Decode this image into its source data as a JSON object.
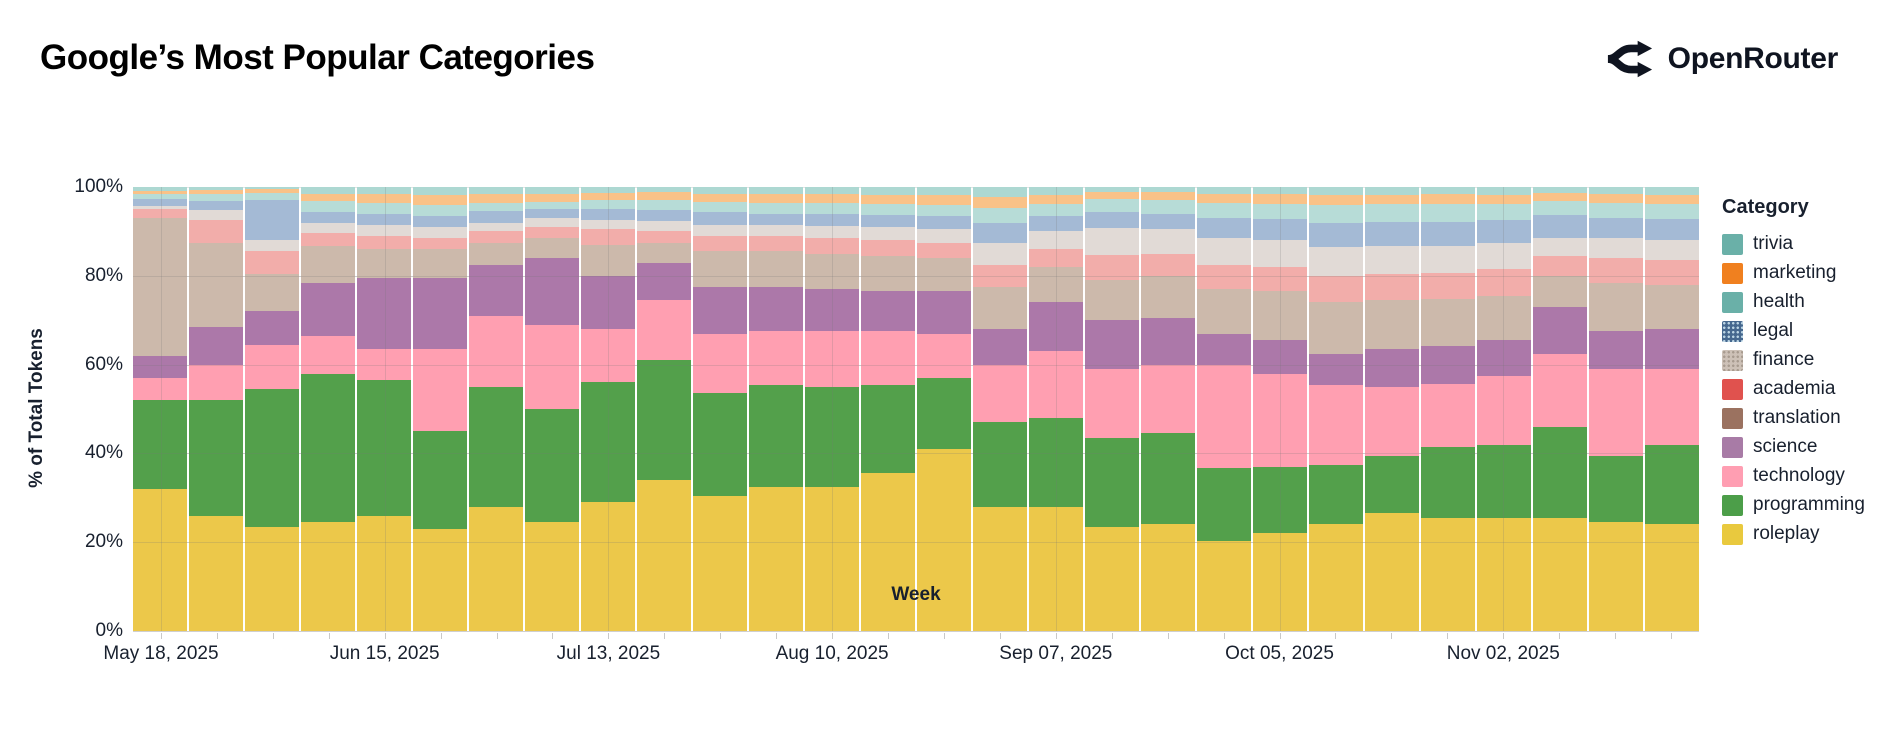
{
  "header": {
    "title": "Google’s Most Popular Categories",
    "brand": "OpenRouter"
  },
  "chart_data": {
    "type": "bar",
    "subtype": "stacked-100-percent",
    "title": "Google’s Most Popular Categories",
    "xlabel": "Week",
    "ylabel": "% of Total Tokens",
    "legend_title": "Category",
    "legend_position": "right",
    "grid": true,
    "ylim": [
      0,
      100
    ],
    "y_tick_labels": [
      "0%",
      "20%",
      "40%",
      "60%",
      "80%",
      "100%"
    ],
    "x_tick_labels": [
      "May 18, 2025",
      "Jun 15, 2025",
      "Jul 13, 2025",
      "Aug 10, 2025",
      "Sep 07, 2025",
      "Oct 05, 2025",
      "Nov 02, 2025"
    ],
    "categories": [
      {
        "id": "trivia",
        "label": "trivia",
        "legend_color": "#6ab0a8",
        "bar_color": "#add8d2",
        "pattern": "teal-dots"
      },
      {
        "id": "marketing",
        "label": "marketing",
        "legend_color": "#f0801f",
        "bar_color": "#f9c288",
        "pattern": "none"
      },
      {
        "id": "health",
        "label": "health",
        "legend_color": "#6ab0a8",
        "bar_color": "#b7dcd7",
        "pattern": "none"
      },
      {
        "id": "legal",
        "label": "legal",
        "legend_color": "#46688f",
        "bar_color": "#a4bad5",
        "pattern": "light-dots"
      },
      {
        "id": "finance",
        "label": "finance",
        "legend_color": "#cdc1b7",
        "bar_color": "#e1dad6",
        "pattern": "light-dots"
      },
      {
        "id": "academia",
        "label": "academia",
        "legend_color": "#e0524e",
        "bar_color": "#f2adaa",
        "pattern": "none"
      },
      {
        "id": "translation",
        "label": "translation",
        "legend_color": "#9b7260",
        "bar_color": "#ccb9ab",
        "pattern": "none"
      },
      {
        "id": "science",
        "label": "science",
        "legend_color": "#a87ba6",
        "bar_color": "#ac78a9",
        "pattern": "none"
      },
      {
        "id": "technology",
        "label": "technology",
        "legend_color": "#ff9eb2",
        "bar_color": "#ff9fb1",
        "pattern": "none"
      },
      {
        "id": "programming",
        "label": "programming",
        "legend_color": "#4c9e49",
        "bar_color": "#53a04b",
        "pattern": "none"
      },
      {
        "id": "roleplay",
        "label": "roleplay",
        "legend_color": "#e9c93e",
        "bar_color": "#ecc84a",
        "pattern": "none"
      }
    ],
    "weeks": [
      {
        "label": "May 18, 2025",
        "values": {
          "roleplay": 32,
          "programming": 20,
          "technology": 5,
          "science": 5,
          "translation": 31,
          "academia": 2,
          "finance": 0.7,
          "legal": 1.6,
          "health": 1.1,
          "marketing": 0.8,
          "trivia": 0.8
        }
      },
      {
        "label": "",
        "values": {
          "roleplay": 26,
          "programming": 26,
          "technology": 8,
          "science": 8.5,
          "translation": 19,
          "academia": 5,
          "finance": 2.3,
          "legal": 2,
          "health": 1.6,
          "marketing": 0.9,
          "trivia": 0.7
        }
      },
      {
        "label": "",
        "values": {
          "roleplay": 23.5,
          "programming": 31,
          "technology": 10,
          "science": 7.5,
          "translation": 8.5,
          "academia": 5,
          "finance": 2.5,
          "legal": 9.2,
          "health": 1.4,
          "marketing": 0.9,
          "trivia": 0.5
        }
      },
      {
        "label": "",
        "values": {
          "roleplay": 24.5,
          "programming": 33.5,
          "technology": 8.5,
          "science": 12,
          "translation": 8.2,
          "academia": 2.9,
          "finance": 2.3,
          "legal": 2.5,
          "health": 2.4,
          "marketing": 1.6,
          "trivia": 1.6
        }
      },
      {
        "label": "Jun 15, 2025",
        "values": {
          "roleplay": 26,
          "programming": 30.5,
          "technology": 7,
          "science": 16,
          "translation": 6.5,
          "academia": 3,
          "finance": 2.5,
          "legal": 2.5,
          "health": 2.5,
          "marketing": 2,
          "trivia": 1.5
        }
      },
      {
        "label": "",
        "values": {
          "roleplay": 23,
          "programming": 22,
          "technology": 18.5,
          "science": 16,
          "translation": 6.5,
          "academia": 2.5,
          "finance": 2.5,
          "legal": 2.5,
          "health": 2.5,
          "marketing": 2.3,
          "trivia": 1.7
        }
      },
      {
        "label": "",
        "values": {
          "roleplay": 28,
          "programming": 27,
          "technology": 16,
          "science": 11.5,
          "translation": 5,
          "academia": 2.5,
          "finance": 2,
          "legal": 2.5,
          "health": 2,
          "marketing": 1.9,
          "trivia": 1.6
        }
      },
      {
        "label": "",
        "values": {
          "roleplay": 24.5,
          "programming": 25.5,
          "technology": 19,
          "science": 15,
          "translation": 4.5,
          "academia": 2.5,
          "finance": 2,
          "legal": 2,
          "health": 1.7,
          "marketing": 1.8,
          "trivia": 1.5
        }
      },
      {
        "label": "Jul 13, 2025",
        "values": {
          "roleplay": 29,
          "programming": 27,
          "technology": 12,
          "science": 12,
          "translation": 7,
          "academia": 3.5,
          "finance": 2,
          "legal": 2.5,
          "health": 2,
          "marketing": 1.7,
          "trivia": 1.3
        }
      },
      {
        "label": "",
        "values": {
          "roleplay": 34,
          "programming": 27,
          "technology": 13.5,
          "science": 8.5,
          "translation": 4.5,
          "academia": 2.5,
          "finance": 2.3,
          "legal": 2.5,
          "health": 2.2,
          "marketing": 1.8,
          "trivia": 1.2
        }
      },
      {
        "label": "",
        "values": {
          "roleplay": 30.5,
          "programming": 23,
          "technology": 13.5,
          "science": 10.5,
          "translation": 8,
          "academia": 3.5,
          "finance": 2.5,
          "legal": 2.8,
          "health": 2.3,
          "marketing": 1.9,
          "trivia": 1.5
        }
      },
      {
        "label": "",
        "values": {
          "roleplay": 32.5,
          "programming": 23,
          "technology": 12,
          "science": 10,
          "translation": 8,
          "academia": 3.5,
          "finance": 2.5,
          "legal": 2.5,
          "health": 2.5,
          "marketing": 1.9,
          "trivia": 1.6
        }
      },
      {
        "label": "Aug 10, 2025",
        "values": {
          "roleplay": 32.5,
          "programming": 22.5,
          "technology": 12.5,
          "science": 9.5,
          "translation": 8,
          "academia": 3.5,
          "finance": 2.8,
          "legal": 2.7,
          "health": 2.5,
          "marketing": 1.9,
          "trivia": 1.6
        }
      },
      {
        "label": "",
        "values": {
          "roleplay": 35.5,
          "programming": 20,
          "technology": 12,
          "science": 9,
          "translation": 8,
          "academia": 3.5,
          "finance": 3,
          "legal": 2.8,
          "health": 2.5,
          "marketing": 2,
          "trivia": 1.7
        }
      },
      {
        "label": "",
        "values": {
          "roleplay": 41,
          "programming": 16,
          "technology": 10,
          "science": 9.5,
          "translation": 7.5,
          "academia": 3.5,
          "finance": 3,
          "legal": 3,
          "health": 2.5,
          "marketing": 2.2,
          "trivia": 1.8
        }
      },
      {
        "label": "",
        "values": {
          "roleplay": 28,
          "programming": 19,
          "technology": 13,
          "science": 8,
          "translation": 9.5,
          "academia": 5,
          "finance": 5,
          "legal": 4.5,
          "health": 3.3,
          "marketing": 2.4,
          "trivia": 2.3
        }
      },
      {
        "label": "Sep 07, 2025",
        "values": {
          "roleplay": 28,
          "programming": 20,
          "technology": 15,
          "science": 11,
          "translation": 8,
          "academia": 4,
          "finance": 4,
          "legal": 3.5,
          "health": 2.8,
          "marketing": 1.9,
          "trivia": 1.8
        }
      },
      {
        "label": "",
        "values": {
          "roleplay": 23.5,
          "programming": 20,
          "technology": 15.5,
          "science": 11,
          "translation": 9,
          "academia": 5.7,
          "finance": 6.1,
          "legal": 3.6,
          "health": 2.9,
          "marketing": 1.6,
          "trivia": 1.1
        }
      },
      {
        "label": "",
        "values": {
          "roleplay": 24,
          "programming": 20.5,
          "technology": 15.5,
          "science": 10.5,
          "translation": 9.5,
          "academia": 5,
          "finance": 5.5,
          "legal": 3.5,
          "health": 3.2,
          "marketing": 1.6,
          "trivia": 1.2
        }
      },
      {
        "label": "",
        "values": {
          "roleplay": 20.3,
          "programming": 16.4,
          "technology": 23.3,
          "science": 7,
          "translation": 10,
          "academia": 5.5,
          "finance": 6,
          "legal": 4.5,
          "health": 3.5,
          "marketing": 2,
          "trivia": 1.5
        }
      },
      {
        "label": "Oct 05, 2025",
        "values": {
          "roleplay": 22,
          "programming": 15,
          "technology": 21,
          "science": 7.5,
          "translation": 11,
          "academia": 5.5,
          "finance": 6,
          "legal": 4.7,
          "health": 3.6,
          "marketing": 2.1,
          "trivia": 1.6
        }
      },
      {
        "label": "",
        "values": {
          "roleplay": 24,
          "programming": 13.5,
          "technology": 18,
          "science": 7,
          "translation": 11.5,
          "academia": 6,
          "finance": 6.5,
          "legal": 5.5,
          "health": 4,
          "marketing": 2.3,
          "trivia": 1.7
        }
      },
      {
        "label": "",
        "values": {
          "roleplay": 26.5,
          "programming": 13,
          "technology": 15.5,
          "science": 8.5,
          "translation": 11,
          "academia": 6,
          "finance": 6.3,
          "legal": 5.4,
          "health": 3.9,
          "marketing": 2.2,
          "trivia": 1.7
        }
      },
      {
        "label": "",
        "values": {
          "roleplay": 25.5,
          "programming": 16,
          "technology": 14.2,
          "science": 8.5,
          "translation": 10.5,
          "academia": 6,
          "finance": 6,
          "legal": 5.5,
          "health": 4,
          "marketing": 2.2,
          "trivia": 1.6
        }
      },
      {
        "label": "Nov 02, 2025",
        "values": {
          "roleplay": 25.5,
          "programming": 16.5,
          "technology": 15.5,
          "science": 8,
          "translation": 10,
          "academia": 6,
          "finance": 5.8,
          "legal": 5.2,
          "health": 3.7,
          "marketing": 2.1,
          "trivia": 1.7
        }
      },
      {
        "label": "",
        "values": {
          "roleplay": 25.5,
          "programming": 20.5,
          "technology": 16.5,
          "science": 10.5,
          "translation": 7,
          "academia": 4.5,
          "finance": 4,
          "legal": 5.2,
          "health": 3.1,
          "marketing": 1.8,
          "trivia": 1.4
        }
      },
      {
        "label": "",
        "values": {
          "roleplay": 24.5,
          "programming": 15,
          "technology": 19.5,
          "science": 8.5,
          "translation": 11,
          "academia": 5.5,
          "finance": 4.5,
          "legal": 4.5,
          "health": 3.4,
          "marketing": 2,
          "trivia": 1.6
        }
      },
      {
        "label": "",
        "values": {
          "roleplay": 24,
          "programming": 18,
          "technology": 17,
          "science": 9,
          "translation": 10,
          "academia": 5.5,
          "finance": 4.5,
          "legal": 4.8,
          "health": 3.5,
          "marketing": 2,
          "trivia": 1.7
        }
      }
    ]
  }
}
